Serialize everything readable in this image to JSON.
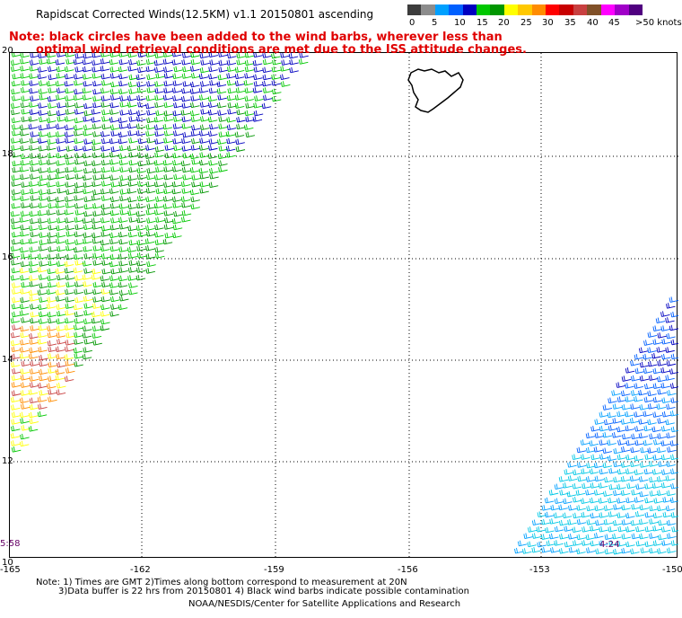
{
  "header": {
    "title": "Rapidscat Corrected Winds(12.5KM) v1.1 20150801 ascending",
    "note_line1": "Note: black circles have been added to the wind barbs, wherever less than",
    "note_line2": "optimal wind retrieval conditions are met due to the ISS attitude changes."
  },
  "legend": {
    "colors": [
      "#3c3c3c",
      "#8c8c8c",
      "#00a0ff",
      "#0060ff",
      "#0000c0",
      "#00c800",
      "#009600",
      "#ffff00",
      "#ffc800",
      "#ff8c00",
      "#ff0000",
      "#c80000",
      "#c84040",
      "#805028",
      "#ff00ff",
      "#a000c8",
      "#500080"
    ],
    "labels": [
      "0",
      "5",
      "10",
      "15",
      "20",
      "25",
      "30",
      "35",
      "40",
      "45",
      ">50 knots"
    ]
  },
  "map": {
    "lat_labels": [
      "20",
      "18",
      "16",
      "14",
      "12",
      "10"
    ],
    "lon_labels": [
      "-165",
      "-162",
      "-159",
      "-156",
      "-153",
      "-150"
    ],
    "time_left": "5:58",
    "time_right": "4:24"
  },
  "footer": {
    "line1": "Note: 1) Times are GMT 2)Times along bottom correspond to measurement at 20N",
    "line2": "3)Data buffer is 22 hrs from 20150801 4) Black wind barbs indicate possible contamination",
    "line3": "NOAA/NESDIS/Center for Satellite Applications and Research"
  }
}
